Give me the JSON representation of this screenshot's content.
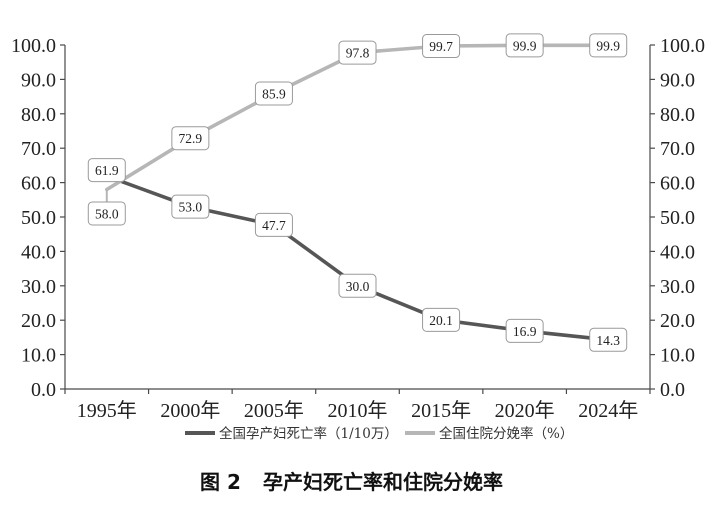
{
  "chart_data": {
    "type": "line",
    "categories": [
      "1995年",
      "2000年",
      "2005年",
      "2010年",
      "2015年",
      "2020年",
      "2024年"
    ],
    "series": [
      {
        "name": "全国孕产妇死亡率（1/10万）",
        "values": [
          61.9,
          53.0,
          47.7,
          30.0,
          20.1,
          16.9,
          14.3
        ],
        "color": "#565656"
      },
      {
        "name": "全国住院分娩率（%）",
        "values": [
          58.0,
          72.9,
          85.9,
          97.8,
          99.7,
          99.9,
          99.9
        ],
        "color": "#b6b6b6"
      }
    ],
    "ylim": [
      0,
      100
    ],
    "y_ticks": [
      "0.0",
      "10.0",
      "20.0",
      "30.0",
      "40.0",
      "50.0",
      "60.0",
      "70.0",
      "80.0",
      "90.0",
      "100.0"
    ],
    "y2lim": [
      0,
      100
    ],
    "y2_ticks": [
      "0.0",
      "10.0",
      "20.0",
      "30.0",
      "40.0",
      "50.0",
      "60.0",
      "70.0",
      "80.0",
      "90.0",
      "100.0"
    ],
    "data_labels": true,
    "grid": false,
    "legend_position": "bottom"
  },
  "caption": {
    "label": "图 2",
    "title": "孕产妇死亡率和住院分娩率"
  }
}
